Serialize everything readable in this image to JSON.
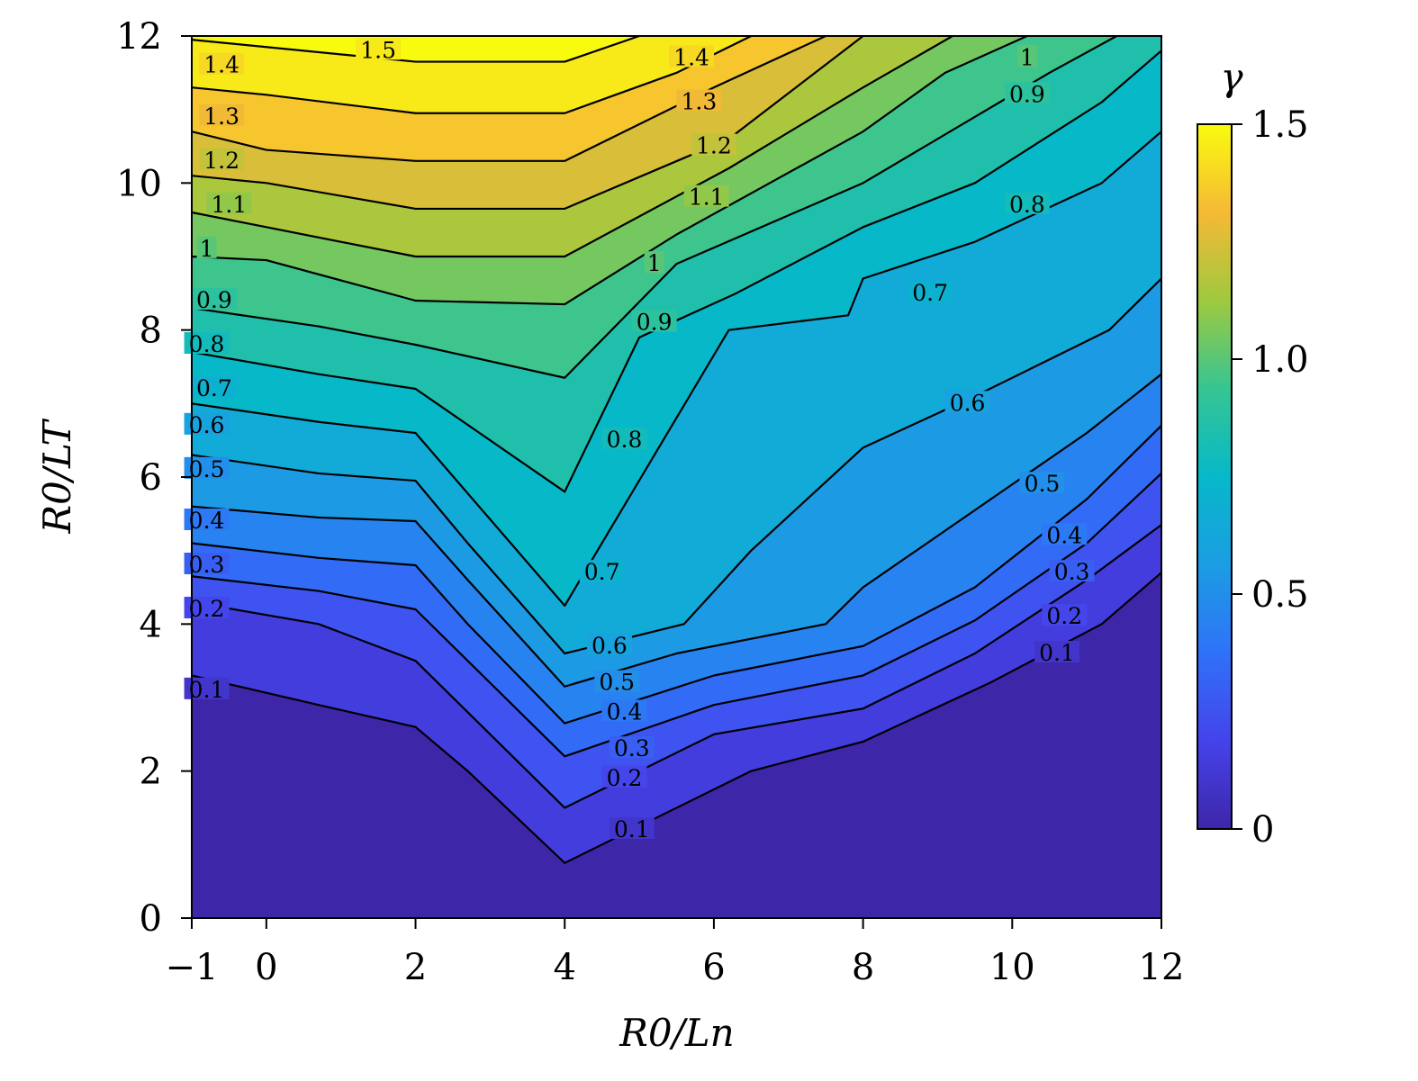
{
  "chart_data": {
    "type": "heatmap",
    "subtype": "filled-contour",
    "title": "",
    "xlabel": "R0/Ln",
    "ylabel": "R0/LT",
    "xlim": [
      -1,
      12
    ],
    "ylim": [
      0,
      12
    ],
    "xticks": [
      -1,
      0,
      2,
      4,
      6,
      8,
      10,
      12
    ],
    "xtick_labels": [
      "−1",
      "0",
      "2",
      "4",
      "6",
      "8",
      "10",
      "12"
    ],
    "yticks": [
      0,
      2,
      4,
      6,
      8,
      10,
      12
    ],
    "ytick_labels": [
      "0",
      "2",
      "4",
      "6",
      "8",
      "10",
      "12"
    ],
    "colorbar": {
      "label": "γ",
      "range": [
        0,
        1.5
      ],
      "ticks": [
        0,
        0.5,
        1.0,
        1.5
      ],
      "tick_labels": [
        "0",
        "0.5",
        "1.0",
        "1.5"
      ],
      "colormap": "parula"
    },
    "grid": false,
    "contour_levels": [
      0.1,
      0.2,
      0.3,
      0.4,
      0.5,
      0.6,
      0.7,
      0.8,
      0.9,
      1,
      1.1,
      1.2,
      1.3,
      1.4,
      1.5
    ],
    "contour_labels": [
      {
        "text": "0.1",
        "x": -0.8,
        "y": 3.1
      },
      {
        "text": "0.1",
        "x": 4.9,
        "y": 1.2
      },
      {
        "text": "0.1",
        "x": 10.6,
        "y": 3.6
      },
      {
        "text": "0.2",
        "x": -0.8,
        "y": 4.2
      },
      {
        "text": "0.2",
        "x": 4.8,
        "y": 1.9
      },
      {
        "text": "0.2",
        "x": 10.7,
        "y": 4.1
      },
      {
        "text": "0.3",
        "x": -0.8,
        "y": 4.8
      },
      {
        "text": "0.3",
        "x": 4.9,
        "y": 2.3
      },
      {
        "text": "0.3",
        "x": 10.8,
        "y": 4.7
      },
      {
        "text": "0.4",
        "x": -0.8,
        "y": 5.4
      },
      {
        "text": "0.4",
        "x": 4.8,
        "y": 2.8
      },
      {
        "text": "0.4",
        "x": 10.7,
        "y": 5.2
      },
      {
        "text": "0.5",
        "x": -0.8,
        "y": 6.1
      },
      {
        "text": "0.5",
        "x": 4.7,
        "y": 3.2
      },
      {
        "text": "0.5",
        "x": 10.4,
        "y": 5.9
      },
      {
        "text": "0.6",
        "x": -0.8,
        "y": 6.7
      },
      {
        "text": "0.6",
        "x": 4.6,
        "y": 3.7
      },
      {
        "text": "0.6",
        "x": 9.4,
        "y": 7.0
      },
      {
        "text": "0.7",
        "x": -0.7,
        "y": 7.2
      },
      {
        "text": "0.7",
        "x": 4.5,
        "y": 4.7
      },
      {
        "text": "0.7",
        "x": 8.9,
        "y": 8.5
      },
      {
        "text": "0.8",
        "x": -0.8,
        "y": 7.8
      },
      {
        "text": "0.8",
        "x": 4.8,
        "y": 6.5
      },
      {
        "text": "0.8",
        "x": 10.2,
        "y": 9.7
      },
      {
        "text": "0.9",
        "x": -0.7,
        "y": 8.4
      },
      {
        "text": "0.9",
        "x": 5.2,
        "y": 8.1
      },
      {
        "text": "0.9",
        "x": 10.2,
        "y": 11.2
      },
      {
        "text": "1",
        "x": -0.8,
        "y": 9.1
      },
      {
        "text": "1",
        "x": 5.2,
        "y": 8.9
      },
      {
        "text": "1",
        "x": 10.2,
        "y": 11.7
      },
      {
        "text": "1.1",
        "x": -0.5,
        "y": 9.7
      },
      {
        "text": "1.1",
        "x": 5.9,
        "y": 9.8
      },
      {
        "text": "1.2",
        "x": -0.6,
        "y": 10.3
      },
      {
        "text": "1.2",
        "x": 6.0,
        "y": 10.5
      },
      {
        "text": "1.3",
        "x": -0.6,
        "y": 10.9
      },
      {
        "text": "1.3",
        "x": 5.8,
        "y": 11.1
      },
      {
        "text": "1.4",
        "x": -0.6,
        "y": 11.6
      },
      {
        "text": "1.4",
        "x": 5.7,
        "y": 11.7
      },
      {
        "text": "1.5",
        "x": 1.5,
        "y": 11.8
      }
    ],
    "contours": [
      {
        "level": 0.1,
        "x": [
          -1,
          0.7,
          2,
          2.7,
          4,
          6.5,
          8,
          9.7,
          11.2,
          12
        ],
        "y": [
          3.3,
          2.9,
          2.6,
          2.0,
          0.75,
          2.0,
          2.4,
          3.2,
          4.0,
          4.7
        ]
      },
      {
        "level": 0.2,
        "x": [
          -1,
          0.7,
          2,
          2.7,
          4,
          6.0,
          8,
          9.5,
          11.0,
          12
        ],
        "y": [
          4.3,
          4.0,
          3.5,
          2.8,
          1.5,
          2.5,
          2.85,
          3.6,
          4.6,
          5.35
        ]
      },
      {
        "level": 0.3,
        "x": [
          -1,
          0.7,
          2,
          2.7,
          4,
          6.0,
          8,
          9.5,
          11.0,
          12
        ],
        "y": [
          4.65,
          4.45,
          4.2,
          3.5,
          2.2,
          2.9,
          3.3,
          4.05,
          5.1,
          6.05
        ]
      },
      {
        "level": 0.4,
        "x": [
          -1,
          0.7,
          2,
          2.7,
          4,
          6.0,
          8,
          9.5,
          11.0,
          12
        ],
        "y": [
          5.1,
          4.9,
          4.8,
          4.0,
          2.65,
          3.3,
          3.7,
          4.5,
          5.7,
          6.7
        ]
      },
      {
        "level": 0.5,
        "x": [
          -1,
          0.7,
          2,
          2.7,
          4,
          5.5,
          7.5,
          8,
          9.5,
          11.0,
          12
        ],
        "y": [
          5.6,
          5.45,
          5.4,
          4.6,
          3.15,
          3.6,
          4.0,
          4.5,
          5.55,
          6.6,
          7.4
        ]
      },
      {
        "level": 0.6,
        "x": [
          -1,
          0.7,
          2,
          2.7,
          4,
          5.6,
          6.5,
          8,
          9.5,
          11.3,
          12
        ],
        "y": [
          6.3,
          6.05,
          5.95,
          5.1,
          3.6,
          4.0,
          5.0,
          6.4,
          7.1,
          8.0,
          8.7
        ]
      },
      {
        "level": 0.7,
        "x": [
          -1,
          0.7,
          2,
          4,
          6.2,
          7.8,
          8,
          9.5,
          11.2,
          12
        ],
        "y": [
          7.0,
          6.75,
          6.6,
          4.25,
          8.0,
          8.2,
          8.7,
          9.2,
          10.0,
          10.7
        ]
      },
      {
        "level": 0.8,
        "x": [
          -1,
          0.7,
          2,
          4,
          5.0,
          6.3,
          8,
          9.5,
          11.2,
          12
        ],
        "y": [
          7.7,
          7.4,
          7.2,
          5.8,
          7.9,
          8.5,
          9.4,
          10.0,
          11.1,
          11.8
        ]
      },
      {
        "level": 0.9,
        "x": [
          -1,
          0.7,
          2,
          4,
          5.5,
          8,
          9.5,
          10.5,
          11.4
        ],
        "y": [
          8.3,
          8.05,
          7.8,
          7.35,
          8.9,
          10.0,
          10.9,
          11.5,
          12
        ]
      },
      {
        "level": 1.0,
        "x": [
          -1,
          0,
          2,
          4,
          5.5,
          8,
          9.1,
          10.2
        ],
        "y": [
          9.0,
          8.95,
          8.4,
          8.35,
          9.3,
          10.7,
          11.5,
          12
        ]
      },
      {
        "level": 1.1,
        "x": [
          -1,
          0,
          2,
          4,
          6.2,
          8,
          9.2
        ],
        "y": [
          9.6,
          9.4,
          9.0,
          9.0,
          10.2,
          11.3,
          12
        ]
      },
      {
        "level": 1.2,
        "x": [
          -1,
          0,
          2,
          4,
          6.2,
          8
        ],
        "y": [
          10.1,
          10.0,
          9.65,
          9.65,
          10.6,
          12
        ]
      },
      {
        "level": 1.3,
        "x": [
          -1,
          0,
          2,
          4,
          6.0,
          7.5
        ],
        "y": [
          10.7,
          10.45,
          10.3,
          10.3,
          11.3,
          12
        ]
      },
      {
        "level": 1.4,
        "x": [
          -1,
          0,
          2,
          4,
          5.5,
          6.5
        ],
        "y": [
          11.3,
          11.2,
          10.95,
          10.95,
          11.5,
          12
        ]
      },
      {
        "level": 1.5,
        "x": [
          -1,
          0,
          2,
          4,
          5
        ],
        "y": [
          11.95,
          11.85,
          11.65,
          11.65,
          12
        ]
      }
    ]
  }
}
